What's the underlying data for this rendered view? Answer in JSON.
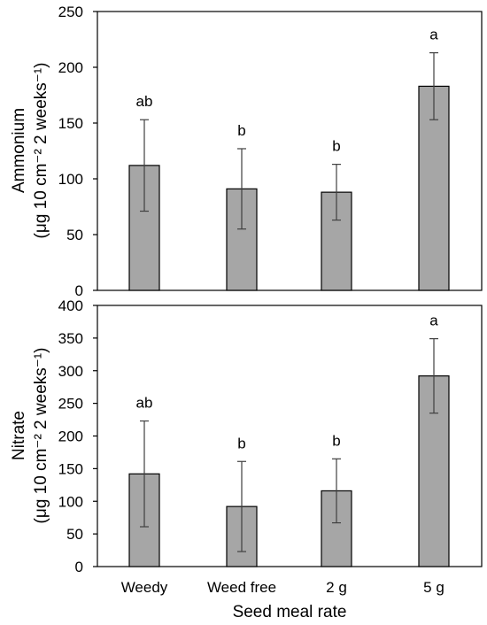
{
  "chart_data": [
    {
      "type": "bar",
      "title": "",
      "ylabel_line1": "Ammonium",
      "ylabel_line2": "(μg 10 cm⁻² 2 weeks⁻¹)",
      "xlabel": "",
      "categories": [
        "Weedy",
        "Weed free",
        "2 g",
        "5 g"
      ],
      "values": [
        112,
        91,
        88,
        183
      ],
      "errors": [
        41,
        36,
        25,
        30
      ],
      "significance": [
        "ab",
        "b",
        "b",
        "a"
      ],
      "ylim": [
        0,
        250
      ],
      "yticks": [
        0,
        50,
        100,
        150,
        200,
        250
      ],
      "bar_color": "#a6a6a6",
      "error_bar_color": "#404040",
      "grid": false
    },
    {
      "type": "bar",
      "title": "",
      "ylabel_line1": "Nitrate",
      "ylabel_line2": "(μg 10 cm⁻² 2 weeks⁻¹)",
      "xlabel": "Seed meal rate",
      "categories": [
        "Weedy",
        "Weed free",
        "2 g",
        "5 g"
      ],
      "values": [
        142,
        92,
        116,
        292
      ],
      "errors": [
        81,
        69,
        49,
        57
      ],
      "significance": [
        "ab",
        "b",
        "b",
        "a"
      ],
      "ylim": [
        0,
        400
      ],
      "yticks": [
        0,
        50,
        100,
        150,
        200,
        250,
        300,
        350,
        400
      ],
      "bar_color": "#a6a6a6",
      "error_bar_color": "#404040",
      "grid": false
    }
  ]
}
